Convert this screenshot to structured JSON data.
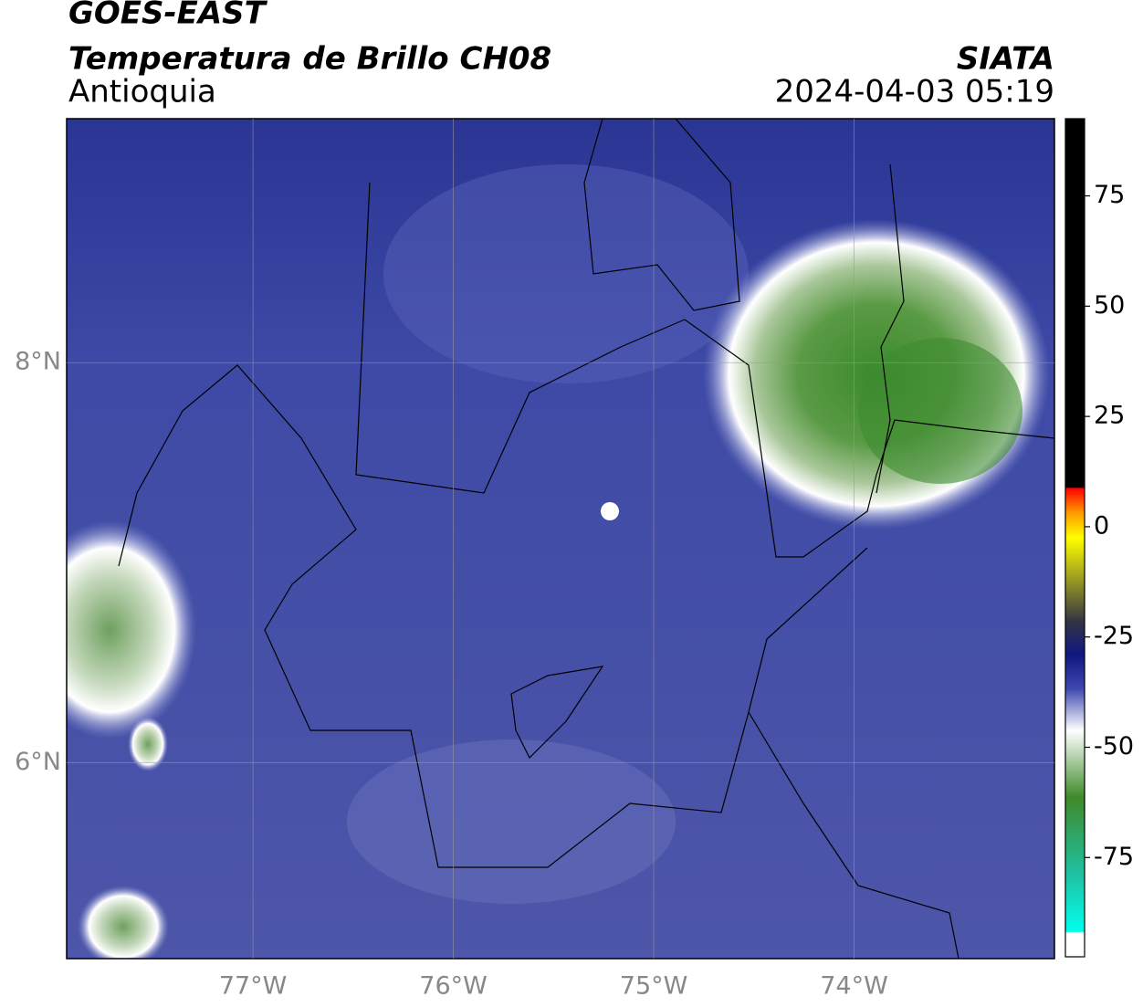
{
  "header": {
    "title": "GOES-EAST",
    "subtitle": "Temperatura de Brillo CH08",
    "region": "Antioquia",
    "source": "SIATA",
    "datetime": "2024-04-03 05:19"
  },
  "map": {
    "xlim": [
      -77.93,
      -73.0
    ],
    "ylim": [
      5.02,
      9.22
    ],
    "xticks": [
      {
        "value": -77,
        "label": "77°W"
      },
      {
        "value": -76,
        "label": "76°W"
      },
      {
        "value": -75,
        "label": "75°W"
      },
      {
        "value": -74,
        "label": "74°W"
      }
    ],
    "yticks": [
      {
        "value": 8,
        "label": "8°N"
      },
      {
        "value": 6,
        "label": "6°N"
      }
    ],
    "grid": true
  },
  "colorbar": {
    "lim": [
      -97.5,
      92.5
    ],
    "ticks": [
      75,
      50,
      25,
      0,
      -25,
      -50,
      -75
    ]
  }
}
